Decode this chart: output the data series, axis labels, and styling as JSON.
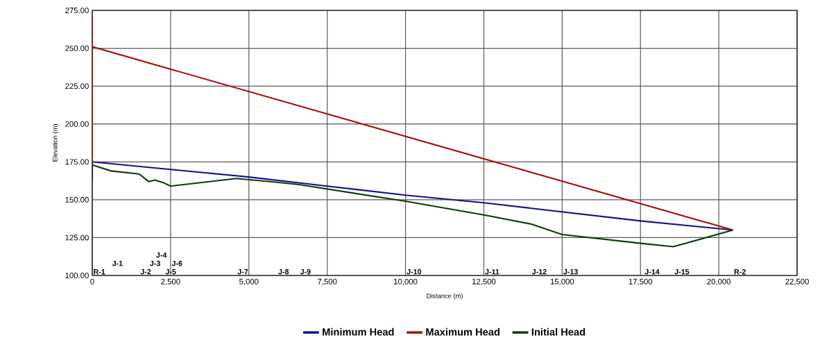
{
  "chart_data": {
    "type": "line",
    "xlabel": "Distance (m)",
    "ylabel": "Elevation (m)",
    "xlim": [
      0,
      22500
    ],
    "ylim": [
      100,
      275
    ],
    "xticks": [
      0,
      {
        "value": 2500,
        "label": "2,500"
      },
      {
        "value": 5000,
        "label": "5,000"
      },
      {
        "value": 7500,
        "label": "7,500"
      },
      {
        "value": 10000,
        "label": "10,000"
      },
      {
        "value": 12500,
        "label": "12,500"
      },
      {
        "value": 15000,
        "label": "15,000"
      },
      {
        "value": 17500,
        "label": "17,500"
      },
      {
        "value": 20000,
        "label": "20,000"
      },
      {
        "value": 22500,
        "label": "22,500"
      }
    ],
    "yticks": [
      {
        "value": 100,
        "label": "100.00"
      },
      {
        "value": 125,
        "label": "125.00"
      },
      {
        "value": 150,
        "label": "150.00"
      },
      {
        "value": 175,
        "label": "175.00"
      },
      {
        "value": 200,
        "label": "200.00"
      },
      {
        "value": 225,
        "label": "225.00"
      },
      {
        "value": 250,
        "label": "250.00"
      },
      {
        "value": 275,
        "label": "275.00"
      }
    ],
    "grid": true,
    "legend": "bottom",
    "marker": "none",
    "line_style": "solid",
    "series": [
      {
        "name": "Minimum Head",
        "color": "#10108f",
        "x": [
          0,
          0,
          2500,
          5000,
          7500,
          10000,
          12500,
          15000,
          17500,
          20450
        ],
        "values": [
          163,
          175,
          170,
          165,
          159,
          153,
          148,
          142,
          136,
          130
        ]
      },
      {
        "name": "Maximum Head",
        "color": "#a81010",
        "x": [
          0,
          0,
          0,
          20450
        ],
        "values": [
          174,
          270,
          251,
          130
        ]
      },
      {
        "name": "Initial Head",
        "color": "#0b3a0b",
        "x": [
          0,
          600,
          1500,
          1800,
          2000,
          2300,
          2500,
          4600,
          5900,
          6600,
          10000,
          12500,
          14000,
          15000,
          17600,
          18550,
          20450
        ],
        "values": [
          173,
          169,
          167,
          162,
          163,
          161,
          159,
          164,
          161.5,
          160,
          149,
          140,
          134,
          127,
          121,
          119,
          130
        ]
      }
    ],
    "annotations": [
      "R-1",
      "J-1",
      "J-2",
      "J-3",
      "J-4",
      "J-5",
      "J-6",
      "J-7",
      "J-8",
      "J-9",
      "J-10",
      "J-11",
      "J-12",
      "J-13",
      "J-14",
      "J-15",
      "R-2"
    ]
  }
}
